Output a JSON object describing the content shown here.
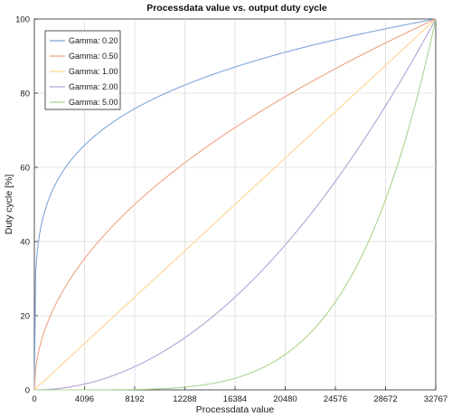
{
  "chart_data": {
    "type": "line",
    "title": "Processdata value vs. output duty cycle",
    "xlabel": "Processdata value",
    "ylabel": "Duty cycle [%]",
    "xlim": [
      0,
      32767
    ],
    "ylim": [
      0,
      100
    ],
    "x_ticks": [
      "0",
      "4096",
      "8192",
      "12288",
      "16384",
      "20480",
      "24576",
      "28672",
      "32767"
    ],
    "y_ticks": [
      "0",
      "20",
      "40",
      "60",
      "80",
      "100"
    ],
    "grid": true,
    "legend_position": "top-left",
    "series": [
      {
        "name": "Gamma: 0.20",
        "gamma": 0.2,
        "color": "#7ea6d9"
      },
      {
        "name": "Gamma: 0.50",
        "gamma": 0.5,
        "color": "#f0a284"
      },
      {
        "name": "Gamma: 1.00",
        "gamma": 1.0,
        "color": "#fdd58d"
      },
      {
        "name": "Gamma: 2.00",
        "gamma": 2.0,
        "color": "#b4a2d6"
      },
      {
        "name": "Gamma: 5.00",
        "gamma": 5.0,
        "color": "#a9d48e"
      }
    ]
  }
}
